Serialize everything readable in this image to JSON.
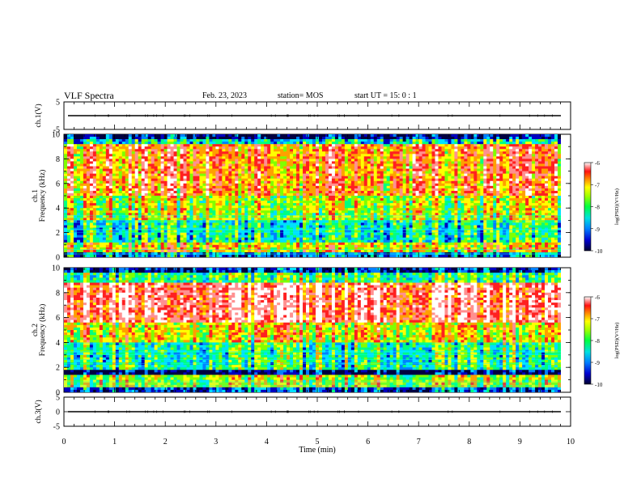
{
  "header": {
    "title": "VLF Spectra",
    "date": "Feb. 23, 2023",
    "station": "station= MOS",
    "start": "start  UT =   15: 0  : 1"
  },
  "chart_data": [
    {
      "type": "line",
      "name": "ch1-waveform",
      "ylabel": "ch.1(V)",
      "ylim": [
        -5,
        5
      ],
      "yticks": [
        "5",
        "-5"
      ],
      "x": [
        0,
        10
      ],
      "values": [
        0,
        0
      ]
    },
    {
      "type": "heatmap",
      "name": "ch1-spectrogram",
      "ylabel": "ch.1\nFrequency (kHz)",
      "ylim": [
        0,
        10
      ],
      "yticks": [
        "0",
        "2",
        "4",
        "6",
        "8",
        "10"
      ],
      "xlim": [
        0,
        10
      ],
      "colorbar": {
        "label": "log(PSD)(V²/Hz)",
        "range": [
          -10,
          -6
        ],
        "ticks": [
          "-6",
          "-7",
          "-8",
          "-9",
          "-10"
        ]
      }
    },
    {
      "type": "heatmap",
      "name": "ch2-spectrogram",
      "ylabel": "ch.2\nFrequency (kHz)",
      "ylim": [
        0,
        10
      ],
      "yticks": [
        "0",
        "2",
        "4",
        "6",
        "8",
        "10"
      ],
      "xlim": [
        0,
        10
      ],
      "colorbar": {
        "label": "log(PSD)(V²/Hz)",
        "range": [
          -10,
          -6
        ],
        "ticks": [
          "-6",
          "-7",
          "-8",
          "-9",
          "-10"
        ]
      }
    },
    {
      "type": "line",
      "name": "ch3-waveform",
      "ylabel": "ch.3(V)",
      "ylim": [
        -5,
        5
      ],
      "yticks": [
        "5",
        "0",
        "-5"
      ],
      "x": [
        0,
        10
      ],
      "values": [
        0,
        0
      ]
    }
  ],
  "xaxis": {
    "label": "Time  (min)",
    "ticks": [
      "0",
      "1",
      "2",
      "3",
      "4",
      "5",
      "6",
      "7",
      "8",
      "9",
      "10"
    ]
  },
  "colors": {
    "colormap": [
      "#000040",
      "#0000c0",
      "#0080ff",
      "#00e0ff",
      "#00ff80",
      "#80ff00",
      "#ffff00",
      "#ffa000",
      "#ff2020",
      "#ff9090",
      "#ffffff"
    ]
  }
}
